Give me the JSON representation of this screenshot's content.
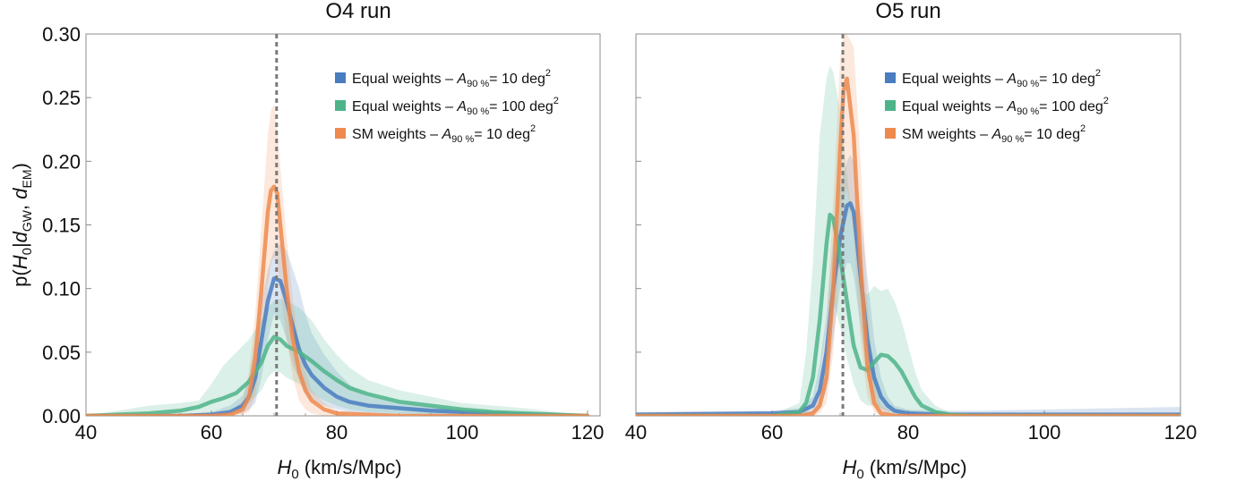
{
  "colors": {
    "equal_10": "#4a7cc0",
    "equal_100": "#4db48a",
    "sm_10": "#ee8a4e",
    "reference": "#7a7a7a",
    "frame": "#8c8c8c"
  },
  "chart_data": [
    {
      "type": "line",
      "title": "O4 run",
      "xlabel": "H0 (km/s/Mpc)",
      "ylabel": "p(H0|dGW, dEM)",
      "xlim": [
        40,
        122
      ],
      "ylim": [
        0,
        0.3
      ],
      "xticks": [
        "40",
        "60",
        "80",
        "100",
        "120"
      ],
      "yticks": [
        "0.00",
        "0.05",
        "0.10",
        "0.15",
        "0.20",
        "0.25",
        "0.30"
      ],
      "reference_line_x": 70.4,
      "legend_position": "top-right",
      "legend": [
        {
          "color": "equal_10",
          "text": "Equal weights – ",
          "sym": "A",
          "sub": "90 %",
          "rest": "= 10 deg",
          "sup": "2"
        },
        {
          "color": "equal_100",
          "text": "Equal weights – ",
          "sym": "A",
          "sub": "90 %",
          "rest": "= 100 deg",
          "sup": "2"
        },
        {
          "color": "sm_10",
          "text": "SM weights – ",
          "sym": "A",
          "sub": "90 %",
          "rest": "= 10 deg",
          "sup": "2"
        }
      ],
      "series": [
        {
          "color": "equal_10",
          "x": [
            40,
            55,
            60,
            63,
            65,
            66,
            67,
            68,
            69,
            70,
            71,
            72,
            73,
            74,
            75,
            76,
            78,
            80,
            82,
            85,
            90,
            95,
            100,
            105,
            110,
            115,
            120
          ],
          "y": [
            0.0,
            0.0,
            0.001,
            0.003,
            0.008,
            0.015,
            0.03,
            0.06,
            0.09,
            0.108,
            0.106,
            0.09,
            0.07,
            0.052,
            0.04,
            0.032,
            0.022,
            0.015,
            0.011,
            0.008,
            0.006,
            0.004,
            0.003,
            0.002,
            0.001,
            0.0005,
            0.0
          ],
          "band_upper": [
            0.0,
            0.001,
            0.003,
            0.008,
            0.016,
            0.03,
            0.06,
            0.09,
            0.115,
            0.13,
            0.135,
            0.13,
            0.115,
            0.1,
            0.08,
            0.065,
            0.048,
            0.035,
            0.025,
            0.015,
            0.01,
            0.007,
            0.005,
            0.003,
            0.002,
            0.001,
            0.0
          ],
          "band_lower": [
            0.0,
            0.0,
            0.0,
            0.001,
            0.002,
            0.005,
            0.01,
            0.03,
            0.06,
            0.08,
            0.075,
            0.06,
            0.04,
            0.028,
            0.018,
            0.012,
            0.008,
            0.005,
            0.003,
            0.002,
            0.001,
            0.0,
            0.0,
            0.0,
            0.0,
            0.0,
            0.0
          ]
        },
        {
          "color": "equal_100",
          "x": [
            40,
            50,
            55,
            58,
            60,
            62,
            64,
            66,
            68,
            69,
            70,
            71,
            72,
            74,
            76,
            78,
            80,
            82,
            85,
            90,
            95,
            100,
            105,
            110,
            115,
            120
          ],
          "y": [
            0.0,
            0.002,
            0.004,
            0.007,
            0.011,
            0.014,
            0.018,
            0.027,
            0.042,
            0.055,
            0.062,
            0.06,
            0.055,
            0.05,
            0.043,
            0.035,
            0.028,
            0.022,
            0.017,
            0.011,
            0.008,
            0.005,
            0.003,
            0.002,
            0.001,
            0.0
          ],
          "band_upper": [
            0.0,
            0.008,
            0.01,
            0.012,
            0.025,
            0.04,
            0.05,
            0.06,
            0.075,
            0.085,
            0.09,
            0.092,
            0.09,
            0.085,
            0.075,
            0.06,
            0.048,
            0.038,
            0.028,
            0.02,
            0.015,
            0.01,
            0.008,
            0.006,
            0.003,
            0.0
          ],
          "band_lower": [
            0.0,
            0.0,
            0.0,
            0.001,
            0.002,
            0.003,
            0.005,
            0.01,
            0.02,
            0.03,
            0.035,
            0.034,
            0.03,
            0.025,
            0.018,
            0.012,
            0.008,
            0.005,
            0.003,
            0.002,
            0.001,
            0.0,
            0.0,
            0.0,
            0.0,
            0.0
          ]
        },
        {
          "color": "sm_10",
          "x": [
            40,
            60,
            63,
            65,
            66,
            67,
            68,
            69,
            69.5,
            70,
            70.5,
            71,
            72,
            73,
            74,
            75,
            76,
            78,
            80,
            85,
            90,
            100,
            110,
            120
          ],
          "y": [
            0.0,
            0.0,
            0.001,
            0.005,
            0.015,
            0.045,
            0.1,
            0.16,
            0.177,
            0.18,
            0.175,
            0.15,
            0.1,
            0.06,
            0.035,
            0.02,
            0.012,
            0.005,
            0.002,
            0.001,
            0.0,
            0.0,
            0.0,
            0.0
          ],
          "band_upper": [
            0.0,
            0.0,
            0.003,
            0.012,
            0.035,
            0.08,
            0.15,
            0.22,
            0.24,
            0.245,
            0.225,
            0.195,
            0.14,
            0.09,
            0.055,
            0.035,
            0.02,
            0.01,
            0.004,
            0.002,
            0.0,
            0.0,
            0.0,
            0.0
          ],
          "band_lower": [
            0.0,
            0.0,
            0.0,
            0.001,
            0.003,
            0.015,
            0.055,
            0.1,
            0.12,
            0.125,
            0.12,
            0.1,
            0.06,
            0.03,
            0.012,
            0.005,
            0.002,
            0.0,
            0.0,
            0.0,
            0.0,
            0.0,
            0.0,
            0.0
          ]
        }
      ]
    },
    {
      "type": "line",
      "title": "O5 run",
      "xlabel": "H0 (km/s/Mpc)",
      "ylabel": "",
      "xlim": [
        40,
        120
      ],
      "ylim": [
        0,
        0.3
      ],
      "xticks": [
        "40",
        "60",
        "80",
        "100",
        "120"
      ],
      "reference_line_x": 70.4,
      "legend_position": "top-right",
      "legend": [
        {
          "color": "equal_10",
          "text": "Equal weights – ",
          "sym": "A",
          "sub": "90 %",
          "rest": "= 10 deg",
          "sup": "2"
        },
        {
          "color": "equal_100",
          "text": "Equal weights – ",
          "sym": "A",
          "sub": "90 %",
          "rest": "= 100 deg",
          "sup": "2"
        },
        {
          "color": "sm_10",
          "text": "SM weights – ",
          "sym": "A",
          "sub": "90 %",
          "rest": "= 10 deg",
          "sup": "2"
        }
      ],
      "series": [
        {
          "color": "equal_10",
          "x": [
            40,
            60,
            64,
            66,
            67,
            68,
            69,
            70,
            71,
            71.5,
            72,
            73,
            74,
            75,
            76,
            77,
            78,
            80,
            85,
            90,
            100,
            110,
            120
          ],
          "y": [
            0.001,
            0.002,
            0.003,
            0.008,
            0.02,
            0.05,
            0.1,
            0.14,
            0.165,
            0.167,
            0.16,
            0.11,
            0.06,
            0.03,
            0.015,
            0.008,
            0.004,
            0.002,
            0.001,
            0.001,
            0.001,
            0.001,
            0.001
          ],
          "band_upper": [
            0.003,
            0.004,
            0.006,
            0.015,
            0.04,
            0.08,
            0.14,
            0.18,
            0.2,
            0.205,
            0.2,
            0.16,
            0.11,
            0.06,
            0.03,
            0.015,
            0.008,
            0.005,
            0.004,
            0.004,
            0.005,
            0.006,
            0.007
          ],
          "band_lower": [
            0.0,
            0.0,
            0.0,
            0.002,
            0.005,
            0.02,
            0.06,
            0.1,
            0.12,
            0.12,
            0.11,
            0.07,
            0.03,
            0.012,
            0.005,
            0.002,
            0.0,
            0.0,
            0.0,
            0.0,
            0.0,
            0.0,
            0.0
          ]
        },
        {
          "color": "equal_100",
          "x": [
            40,
            60,
            64,
            65,
            66,
            67,
            68,
            68.5,
            69,
            70,
            71,
            72,
            73,
            74,
            75,
            76,
            77,
            78,
            79,
            80,
            81,
            82,
            84,
            86,
            90,
            100,
            110,
            120
          ],
          "y": [
            0.0,
            0.0,
            0.003,
            0.01,
            0.03,
            0.075,
            0.135,
            0.158,
            0.155,
            0.125,
            0.09,
            0.055,
            0.038,
            0.036,
            0.042,
            0.048,
            0.047,
            0.042,
            0.035,
            0.025,
            0.015,
            0.008,
            0.003,
            0.001,
            0.0,
            0.0,
            0.0,
            0.0
          ],
          "band_upper": [
            0.0,
            0.001,
            0.01,
            0.05,
            0.12,
            0.22,
            0.265,
            0.275,
            0.27,
            0.24,
            0.19,
            0.14,
            0.1,
            0.095,
            0.102,
            0.098,
            0.1,
            0.09,
            0.075,
            0.055,
            0.035,
            0.02,
            0.008,
            0.003,
            0.001,
            0.0,
            0.0,
            0.0
          ],
          "band_lower": [
            0.0,
            0.0,
            0.0,
            0.002,
            0.008,
            0.03,
            0.07,
            0.09,
            0.09,
            0.07,
            0.045,
            0.025,
            0.012,
            0.008,
            0.008,
            0.006,
            0.004,
            0.002,
            0.001,
            0.0,
            0.0,
            0.0,
            0.0,
            0.0,
            0.0,
            0.0,
            0.0,
            0.0
          ]
        },
        {
          "color": "sm_10",
          "x": [
            40,
            64,
            66,
            67,
            68,
            69,
            70,
            70.5,
            71,
            72,
            73,
            74,
            75,
            76,
            78,
            80,
            90,
            100,
            110,
            120
          ],
          "y": [
            0.0,
            0.0,
            0.002,
            0.008,
            0.03,
            0.1,
            0.21,
            0.255,
            0.265,
            0.22,
            0.12,
            0.04,
            0.01,
            0.002,
            0.0,
            0.0,
            0.0,
            0.0,
            0.0,
            0.0
          ],
          "band_upper": [
            0.0,
            0.0,
            0.005,
            0.02,
            0.07,
            0.17,
            0.28,
            0.3,
            0.3,
            0.29,
            0.2,
            0.09,
            0.025,
            0.008,
            0.002,
            0.0,
            0.0,
            0.0,
            0.0,
            0.0
          ],
          "band_lower": [
            0.0,
            0.0,
            0.0,
            0.002,
            0.01,
            0.05,
            0.13,
            0.17,
            0.18,
            0.14,
            0.06,
            0.015,
            0.003,
            0.0,
            0.0,
            0.0,
            0.0,
            0.0,
            0.0,
            0.0
          ]
        }
      ]
    }
  ]
}
